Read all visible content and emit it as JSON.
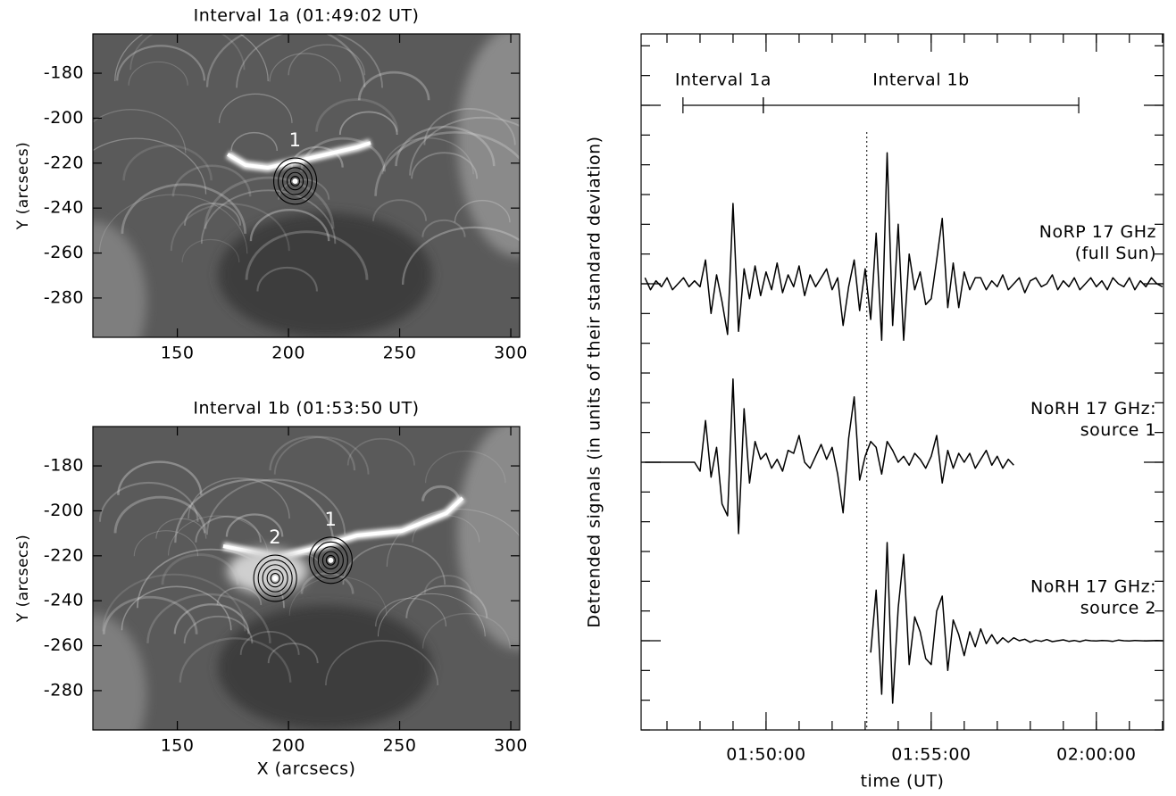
{
  "chart_data": [
    {
      "type": "image",
      "title": "Interval 1a (01:49:02 UT)",
      "ylabel": "Y (arcsecs)",
      "xlim": [
        112,
        304
      ],
      "ylim": [
        -297.5,
        -162.5
      ],
      "xticks": [
        150,
        200,
        250,
        300
      ],
      "yticks": [
        -180,
        -200,
        -220,
        -240,
        -260,
        -280
      ],
      "sources": [
        {
          "label": "1",
          "x": 203,
          "y": -228
        }
      ]
    },
    {
      "type": "image",
      "title": "Interval 1b (01:53:50 UT)",
      "xlabel": "X (arcsecs)",
      "ylabel": "Y (arcsecs)",
      "xlim": [
        112,
        304
      ],
      "ylim": [
        -297.5,
        -162.5
      ],
      "xticks": [
        150,
        200,
        250,
        300
      ],
      "yticks": [
        -180,
        -200,
        -220,
        -240,
        -260,
        -280
      ],
      "sources": [
        {
          "label": "2",
          "x": 194,
          "y": -230
        },
        {
          "label": "1",
          "x": 219,
          "y": -222
        }
      ]
    },
    {
      "type": "line",
      "ylabel": "Detrended signals (in units of their standard deviation)",
      "xlabel": "time (UT)",
      "xlim": [
        "01:46:13",
        "02:02:02"
      ],
      "xticks": [
        "01:50:00",
        "01:55:00",
        "02:00:00"
      ],
      "xminorticks": [
        "01:47:00",
        "01:48:00",
        "01:49:00",
        "01:50:00",
        "01:51:00",
        "01:52:00",
        "01:53:00",
        "01:54:00",
        "01:55:00",
        "01:56:00",
        "01:57:00",
        "01:58:00",
        "01:59:00",
        "02:00:00",
        "02:01:00",
        "02:02:00"
      ],
      "ylim": [
        0,
        23.4
      ],
      "yticks": [
        0,
        1,
        2,
        3,
        4,
        5,
        6,
        7,
        8,
        9,
        10,
        11,
        12,
        13,
        14,
        15,
        16,
        17,
        18,
        19,
        20,
        21,
        22,
        23
      ],
      "ymajorticks": [
        3,
        9,
        15,
        21
      ],
      "intervals": [
        {
          "label": "Interval 1a",
          "start": "01:47:29",
          "end": "01:49:55"
        },
        {
          "label": "Interval 1b",
          "start": "01:49:55",
          "end": "01:59:28"
        }
      ],
      "vline": "01:53:03",
      "x": [
        "01:46:20",
        "01:46:30",
        "01:46:40",
        "01:46:50",
        "01:47:00",
        "01:47:10",
        "01:47:20",
        "01:47:30",
        "01:47:40",
        "01:47:50",
        "01:48:00",
        "01:48:10",
        "01:48:20",
        "01:48:30",
        "01:48:40",
        "01:48:50",
        "01:49:00",
        "01:49:10",
        "01:49:20",
        "01:49:30",
        "01:49:40",
        "01:49:50",
        "01:50:00",
        "01:50:10",
        "01:50:20",
        "01:50:30",
        "01:50:40",
        "01:50:50",
        "01:51:00",
        "01:51:10",
        "01:51:20",
        "01:51:30",
        "01:51:40",
        "01:51:50",
        "01:52:00",
        "01:52:10",
        "01:52:20",
        "01:52:30",
        "01:52:40",
        "01:52:50",
        "01:53:00",
        "01:53:10",
        "01:53:20",
        "01:53:30",
        "01:53:40",
        "01:53:50",
        "01:54:00",
        "01:54:10",
        "01:54:20",
        "01:54:30",
        "01:54:40",
        "01:54:50",
        "01:55:00",
        "01:55:10",
        "01:55:20",
        "01:55:30",
        "01:55:40",
        "01:55:50",
        "01:56:00",
        "01:56:10",
        "01:56:20",
        "01:56:30",
        "01:56:40",
        "01:56:50",
        "01:57:00",
        "01:57:10",
        "01:57:20",
        "01:57:30",
        "01:57:40",
        "01:57:50",
        "01:58:00",
        "01:58:10",
        "01:58:20",
        "01:58:30",
        "01:58:40",
        "01:58:50",
        "01:59:00",
        "01:59:10",
        "01:59:20",
        "01:59:30",
        "01:59:40",
        "01:59:50",
        "02:00:00",
        "02:00:10",
        "02:00:20",
        "02:00:30",
        "02:00:40",
        "02:00:50",
        "02:01:00",
        "02:01:10",
        "02:01:20",
        "02:01:30",
        "02:01:40",
        "02:01:50",
        "02:02:00"
      ],
      "series": [
        {
          "label": [
            "NoRP 17 GHz",
            "(full Sun)"
          ],
          "color": "#000000",
          "values": [
            15.2,
            14.8,
            15.1,
            14.9,
            15.2,
            14.8,
            15.0,
            15.2,
            14.9,
            15.1,
            14.9,
            15.8,
            14.0,
            15.3,
            14.4,
            13.3,
            17.7,
            13.4,
            15.5,
            14.5,
            15.6,
            14.6,
            15.4,
            14.8,
            15.7,
            14.7,
            15.3,
            14.9,
            15.6,
            14.6,
            15.3,
            14.9,
            15.2,
            15.5,
            14.8,
            15.2,
            13.6,
            14.9,
            15.8,
            14.1,
            15.5,
            13.8,
            16.7,
            13.1,
            19.4,
            13.6,
            17.0,
            13.1,
            16.0,
            14.8,
            15.4,
            14.3,
            14.5,
            15.8,
            17.2,
            14.2,
            15.7,
            14.2,
            15.4,
            14.8,
            15.2,
            15.2,
            14.8,
            15.1,
            14.9,
            15.3,
            14.8,
            15.0,
            15.2,
            14.7,
            15.1,
            15.2,
            14.9,
            15.0,
            15.3,
            14.8,
            15.1,
            14.9,
            15.2,
            14.8,
            15.0,
            15.2,
            14.9,
            15.1,
            14.8,
            15.2,
            15.0,
            14.9,
            15.2,
            14.8,
            15.1,
            14.9,
            15.2,
            15.0,
            14.9
          ]
        },
        {
          "label": [
            "NoRH 17 GHz:",
            "source 1"
          ],
          "color": "#000000",
          "values": [
            9.0,
            9.0,
            9.0,
            9.0,
            9.0,
            9.0,
            9.0,
            9.0,
            9.0,
            9.0,
            8.7,
            10.4,
            8.5,
            9.5,
            7.6,
            7.2,
            11.8,
            6.6,
            10.8,
            8.3,
            9.7,
            9.1,
            9.3,
            8.8,
            9.1,
            8.7,
            9.4,
            9.3,
            9.9,
            9.0,
            8.8,
            9.2,
            9.6,
            9.1,
            9.5,
            8.6,
            7.3,
            9.8,
            11.2,
            8.4,
            9.2,
            9.7,
            9.5,
            8.6,
            9.7,
            9.4,
            9.0,
            9.2,
            8.9,
            9.3,
            9.1,
            8.8,
            9.2,
            9.9,
            8.3,
            9.4,
            8.8,
            9.3,
            9.0,
            9.3,
            8.8,
            9.1,
            9.4,
            8.9,
            9.2,
            8.8,
            9.1,
            8.9,
            null,
            null,
            null,
            null,
            null,
            null,
            null,
            null,
            null,
            null,
            null,
            null,
            null,
            null,
            null,
            null,
            null,
            null,
            null,
            null,
            null,
            null,
            null,
            null,
            null,
            null,
            null
          ]
        },
        {
          "label": [
            "NoRH 17 GHz:",
            "source 2"
          ],
          "color": "#000000",
          "values": [
            null,
            null,
            null,
            null,
            null,
            null,
            null,
            null,
            null,
            null,
            null,
            null,
            null,
            null,
            null,
            null,
            null,
            null,
            null,
            null,
            null,
            null,
            null,
            null,
            null,
            null,
            null,
            null,
            null,
            null,
            null,
            null,
            null,
            null,
            null,
            null,
            null,
            null,
            null,
            null,
            null,
            2.6,
            4.7,
            1.2,
            6.3,
            0.9,
            4.1,
            5.9,
            2.2,
            3.8,
            3.3,
            2.4,
            2.2,
            4.0,
            4.5,
            2.0,
            3.7,
            3.2,
            2.5,
            3.3,
            2.8,
            3.4,
            2.9,
            3.2,
            2.9,
            3.1,
            2.95,
            3.1,
            3.0,
            3.05,
            2.95,
            3.02,
            2.98,
            3.04,
            2.97,
            3.0,
            3.03,
            2.98,
            3.01,
            2.97,
            3.02,
            3.0,
            2.99,
            3.01,
            3.0,
            2.98,
            3.02,
            3.0,
            2.99,
            3.01,
            3.0,
            2.99,
            3.0,
            3.01,
            3.0
          ]
        }
      ]
    }
  ]
}
